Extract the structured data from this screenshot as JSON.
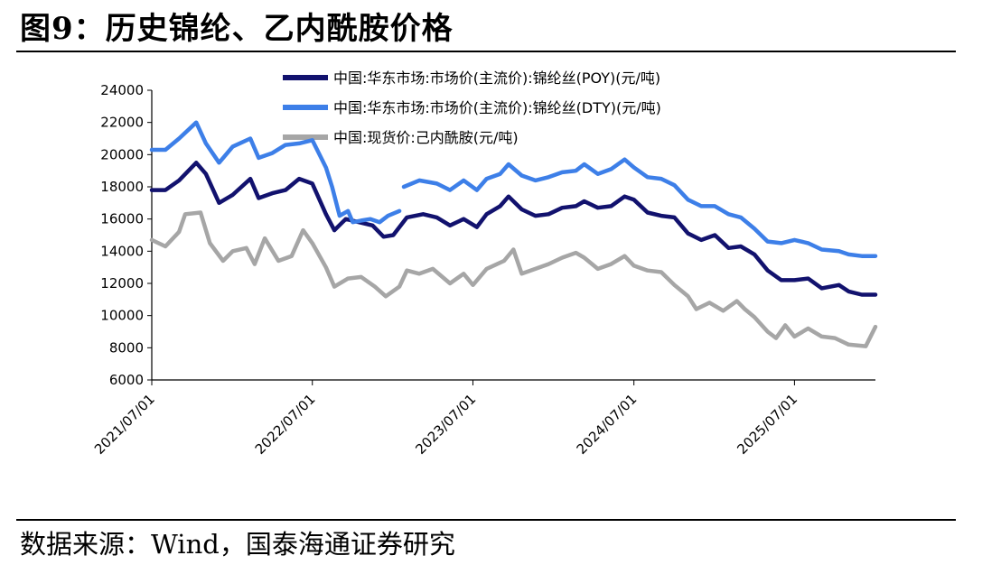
{
  "figure": {
    "title": "图9：历史锦纶、乙内酰胺价格",
    "source": "数据来源：Wind，国泰海通证券研究"
  },
  "chart_data": {
    "type": "line",
    "ylim": [
      6000,
      24000
    ],
    "yticks": [
      6000,
      8000,
      10000,
      12000,
      14000,
      16000,
      18000,
      20000,
      22000,
      24000
    ],
    "xlim": [
      "2021/07/01",
      "2026/01/01"
    ],
    "xticks": [
      "2021/07/01",
      "2022/07/01",
      "2023/07/01",
      "2024/07/01",
      "2025/07/01"
    ],
    "grid": false,
    "legend_position": "top",
    "series": [
      {
        "name": "中国:华东市场:市场价(主流价):锦纶丝(POY)(元/吨)",
        "color": "#12126e",
        "points": [
          [
            "2021/07/01",
            17800
          ],
          [
            "2021/08/01",
            17800
          ],
          [
            "2021/09/01",
            18400
          ],
          [
            "2021/10/10",
            19500
          ],
          [
            "2021/11/01",
            18800
          ],
          [
            "2021/12/01",
            17000
          ],
          [
            "2022/01/01",
            17500
          ],
          [
            "2022/02/10",
            18500
          ],
          [
            "2022/03/01",
            17300
          ],
          [
            "2022/04/01",
            17600
          ],
          [
            "2022/05/01",
            17800
          ],
          [
            "2022/06/01",
            18500
          ],
          [
            "2022/07/01",
            18200
          ],
          [
            "2022/08/01",
            16300
          ],
          [
            "2022/08/20",
            15300
          ],
          [
            "2022/09/15",
            16000
          ],
          [
            "2022/10/15",
            15800
          ],
          [
            "2022/11/15",
            15600
          ],
          [
            "2022/12/10",
            14900
          ],
          [
            "2023/01/01",
            15000
          ],
          [
            "2023/02/01",
            16100
          ],
          [
            "2023/03/10",
            16300
          ],
          [
            "2023/04/10",
            16100
          ],
          [
            "2023/05/10",
            15600
          ],
          [
            "2023/06/10",
            16000
          ],
          [
            "2023/07/10",
            15500
          ],
          [
            "2023/08/01",
            16300
          ],
          [
            "2023/09/01",
            16800
          ],
          [
            "2023/09/20",
            17400
          ],
          [
            "2023/10/20",
            16600
          ],
          [
            "2023/11/20",
            16200
          ],
          [
            "2023/12/20",
            16300
          ],
          [
            "2024/01/20",
            16700
          ],
          [
            "2024/02/20",
            16800
          ],
          [
            "2024/03/10",
            17100
          ],
          [
            "2024/04/10",
            16700
          ],
          [
            "2024/05/10",
            16800
          ],
          [
            "2024/06/10",
            17400
          ],
          [
            "2024/07/01",
            17200
          ],
          [
            "2024/08/01",
            16400
          ],
          [
            "2024/09/01",
            16200
          ],
          [
            "2024/10/01",
            16100
          ],
          [
            "2024/11/01",
            15100
          ],
          [
            "2024/12/01",
            14700
          ],
          [
            "2025/01/01",
            15000
          ],
          [
            "2025/02/01",
            14200
          ],
          [
            "2025/03/01",
            14300
          ],
          [
            "2025/04/01",
            13800
          ],
          [
            "2025/05/01",
            12800
          ],
          [
            "2025/06/01",
            12200
          ],
          [
            "2025/07/01",
            12200
          ],
          [
            "2025/08/01",
            12300
          ],
          [
            "2025/09/01",
            11700
          ],
          [
            "2025/10/10",
            11900
          ],
          [
            "2025/11/01",
            11500
          ],
          [
            "2025/12/01",
            11300
          ],
          [
            "2026/01/01",
            11300
          ]
        ]
      },
      {
        "name": "中国:华东市场:市场价(主流价):锦纶丝(DTY)(元/吨)",
        "color": "#3d7fe8",
        "points": [
          [
            "2021/07/01",
            20300
          ],
          [
            "2021/08/01",
            20300
          ],
          [
            "2021/09/01",
            21000
          ],
          [
            "2021/10/10",
            22000
          ],
          [
            "2021/11/01",
            20700
          ],
          [
            "2021/12/01",
            19500
          ],
          [
            "2022/01/01",
            20500
          ],
          [
            "2022/02/10",
            21000
          ],
          [
            "2022/03/01",
            19800
          ],
          [
            "2022/04/01",
            20100
          ],
          [
            "2022/05/01",
            20600
          ],
          [
            "2022/06/01",
            20700
          ],
          [
            "2022/07/01",
            20900
          ],
          [
            "2022/08/01",
            19200
          ],
          [
            "2022/08/15",
            18000
          ],
          [
            "2022/09/01",
            16200
          ],
          [
            "2022/09/20",
            16500
          ],
          [
            "2022/10/01",
            15800
          ],
          [
            "2022/10/20",
            15900
          ],
          [
            "2022/11/10",
            16000
          ],
          [
            "2022/12/01",
            15800
          ],
          [
            "2022/12/20",
            16200
          ],
          [
            "2023/01/15",
            16500
          ],
          [
            null,
            null
          ],
          [
            "2023/01/25",
            18000
          ],
          [
            "2023/03/01",
            18400
          ],
          [
            "2023/04/10",
            18200
          ],
          [
            "2023/05/10",
            17800
          ],
          [
            "2023/06/10",
            18400
          ],
          [
            "2023/07/10",
            17800
          ],
          [
            "2023/08/01",
            18500
          ],
          [
            "2023/09/01",
            18800
          ],
          [
            "2023/09/20",
            19400
          ],
          [
            "2023/10/20",
            18700
          ],
          [
            "2023/11/20",
            18400
          ],
          [
            "2023/12/20",
            18600
          ],
          [
            "2024/01/20",
            18900
          ],
          [
            "2024/02/20",
            19000
          ],
          [
            "2024/03/10",
            19400
          ],
          [
            "2024/04/10",
            18800
          ],
          [
            "2024/05/10",
            19100
          ],
          [
            "2024/06/10",
            19700
          ],
          [
            "2024/07/01",
            19200
          ],
          [
            "2024/08/01",
            18600
          ],
          [
            "2024/09/01",
            18500
          ],
          [
            "2024/10/01",
            18100
          ],
          [
            "2024/11/01",
            17200
          ],
          [
            "2024/12/01",
            16800
          ],
          [
            "2025/01/01",
            16800
          ],
          [
            "2025/02/01",
            16300
          ],
          [
            "2025/03/01",
            16100
          ],
          [
            "2025/04/01",
            15400
          ],
          [
            "2025/05/01",
            14600
          ],
          [
            "2025/06/01",
            14500
          ],
          [
            "2025/07/01",
            14700
          ],
          [
            "2025/08/01",
            14500
          ],
          [
            "2025/09/01",
            14100
          ],
          [
            "2025/10/10",
            14000
          ],
          [
            "2025/11/01",
            13800
          ],
          [
            "2025/12/01",
            13700
          ],
          [
            "2026/01/01",
            13700
          ]
        ]
      },
      {
        "name": "中国:现货价:己内酰胺(元/吨)",
        "color": "#a6a6a6",
        "points": [
          [
            "2021/07/01",
            14700
          ],
          [
            "2021/08/01",
            14300
          ],
          [
            "2021/09/01",
            15200
          ],
          [
            "2021/09/15",
            16300
          ],
          [
            "2021/10/20",
            16400
          ],
          [
            "2021/11/10",
            14500
          ],
          [
            "2021/12/10",
            13400
          ],
          [
            "2022/01/01",
            14000
          ],
          [
            "2022/02/01",
            14200
          ],
          [
            "2022/02/20",
            13200
          ],
          [
            "2022/03/15",
            14800
          ],
          [
            "2022/04/15",
            13400
          ],
          [
            "2022/05/15",
            13700
          ],
          [
            "2022/06/10",
            15300
          ],
          [
            "2022/07/01",
            14500
          ],
          [
            "2022/08/01",
            13000
          ],
          [
            "2022/08/20",
            11800
          ],
          [
            "2022/09/20",
            12300
          ],
          [
            "2022/10/20",
            12400
          ],
          [
            "2022/11/20",
            11800
          ],
          [
            "2022/12/15",
            11200
          ],
          [
            "2023/01/15",
            11800
          ],
          [
            "2023/02/01",
            12800
          ],
          [
            "2023/03/01",
            12600
          ],
          [
            "2023/04/01",
            12900
          ],
          [
            "2023/05/10",
            12000
          ],
          [
            "2023/06/10",
            12600
          ],
          [
            "2023/07/01",
            11900
          ],
          [
            "2023/08/01",
            12900
          ],
          [
            "2023/09/10",
            13400
          ],
          [
            "2023/10/01",
            14100
          ],
          [
            "2023/10/20",
            12600
          ],
          [
            "2023/11/20",
            12900
          ],
          [
            "2023/12/20",
            13200
          ],
          [
            "2024/01/20",
            13600
          ],
          [
            "2024/02/20",
            13900
          ],
          [
            "2024/03/10",
            13600
          ],
          [
            "2024/04/10",
            12900
          ],
          [
            "2024/05/10",
            13200
          ],
          [
            "2024/06/10",
            13700
          ],
          [
            "2024/07/01",
            13100
          ],
          [
            "2024/08/01",
            12800
          ],
          [
            "2024/09/01",
            12700
          ],
          [
            "2024/10/01",
            11900
          ],
          [
            "2024/11/01",
            11200
          ],
          [
            "2024/11/20",
            10400
          ],
          [
            "2024/12/20",
            10800
          ],
          [
            "2025/01/20",
            10300
          ],
          [
            "2025/02/20",
            10900
          ],
          [
            "2025/03/10",
            10400
          ],
          [
            "2025/04/01",
            9900
          ],
          [
            "2025/05/01",
            9000
          ],
          [
            "2025/05/20",
            8600
          ],
          [
            "2025/06/10",
            9400
          ],
          [
            "2025/07/01",
            8700
          ],
          [
            "2025/08/01",
            9200
          ],
          [
            "2025/09/01",
            8700
          ],
          [
            "2025/10/01",
            8600
          ],
          [
            "2025/11/01",
            8200
          ],
          [
            "2025/12/10",
            8100
          ],
          [
            "2026/01/01",
            9300
          ]
        ]
      }
    ]
  }
}
